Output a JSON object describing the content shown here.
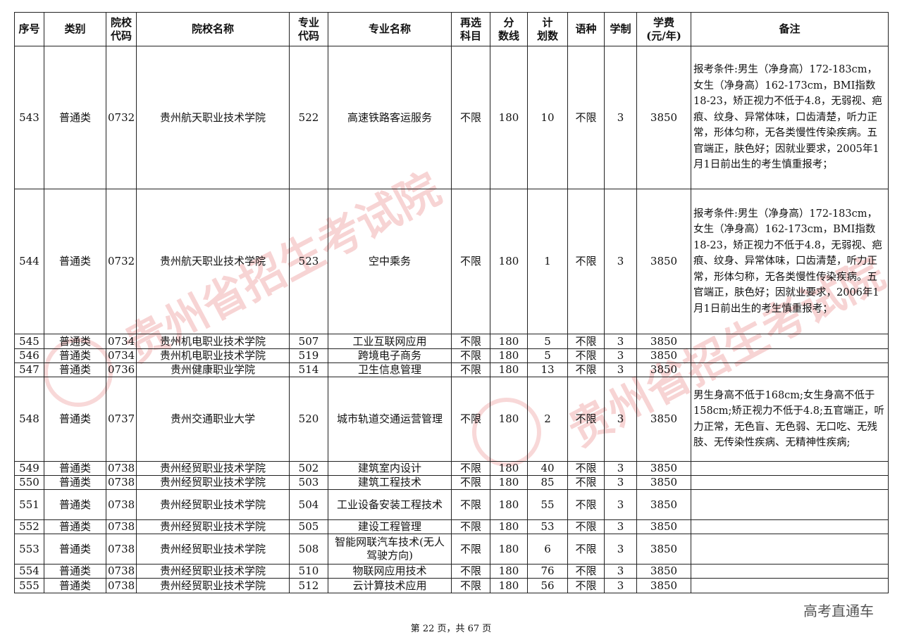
{
  "headers": [
    "序号",
    "类别",
    "院校\n代码",
    "院校名称",
    "专业\n代码",
    "专业名称",
    "再选\n科目",
    "分\n数线",
    "计\n划数",
    "语种",
    "学制",
    "学费\n(元/年)",
    "备注"
  ],
  "rows": [
    [
      "543",
      "普通类",
      "0732",
      "贵州航天职业技术学院",
      "522",
      "高速铁路客运服务",
      "不限",
      "180",
      "10",
      "不限",
      "3",
      "3850",
      "报考条件:男生（净身高）172-183cm，女生（净身高）162-173cm，BMI指数18-23，矫正视力不低于4.8，无弱视、疤痕、纹身、异常体味，口齿清楚，听力正常，形体匀称，无各类慢性传染疾病。五官端正，肤色好；因就业要求，2005年1月1日前出生的考生慎重报考；"
    ],
    [
      "544",
      "普通类",
      "0732",
      "贵州航天职业技术学院",
      "523",
      "空中乘务",
      "不限",
      "180",
      "1",
      "不限",
      "3",
      "3850",
      "报考条件:男生（净身高）172-183cm，女生（净身高）162-173cm，BMI指数18-23，矫正视力不低于4.8，无弱视、疤痕、纹身、异常体味，口齿清楚，听力正常，形体匀称，无各类慢性传染疾病。五官端正，肤色好；因就业要求，2006年1月1日前出生的考生慎重报考；"
    ],
    [
      "545",
      "普通类",
      "0734",
      "贵州机电职业技术学院",
      "507",
      "工业互联网应用",
      "不限",
      "180",
      "5",
      "不限",
      "3",
      "3850",
      ""
    ],
    [
      "546",
      "普通类",
      "0734",
      "贵州机电职业技术学院",
      "519",
      "跨境电子商务",
      "不限",
      "180",
      "5",
      "不限",
      "3",
      "3850",
      ""
    ],
    [
      "547",
      "普通类",
      "0736",
      "贵州健康职业学院",
      "514",
      "卫生信息管理",
      "不限",
      "180",
      "13",
      "不限",
      "3",
      "3850",
      ""
    ],
    [
      "548",
      "普通类",
      "0737",
      "贵州交通职业大学",
      "520",
      "城市轨道交通运营管理",
      "不限",
      "180",
      "2",
      "不限",
      "3",
      "3850",
      "男生身高不低于168cm;女生身高不低于158cm;矫正视力不低于4.8;五官端正，听力正常，无色盲、无色弱、无口吃、无残肢、无传染性疾病、无精神性疾病;"
    ],
    [
      "549",
      "普通类",
      "0738",
      "贵州经贸职业技术学院",
      "502",
      "建筑室内设计",
      "不限",
      "180",
      "40",
      "不限",
      "3",
      "3850",
      ""
    ],
    [
      "550",
      "普通类",
      "0738",
      "贵州经贸职业技术学院",
      "503",
      "建筑工程技术",
      "不限",
      "180",
      "85",
      "不限",
      "3",
      "3850",
      ""
    ],
    [
      "551",
      "普通类",
      "0738",
      "贵州经贸职业技术学院",
      "504",
      "工业设备安装工程技术",
      "不限",
      "180",
      "55",
      "不限",
      "3",
      "3850",
      ""
    ],
    [
      "552",
      "普通类",
      "0738",
      "贵州经贸职业技术学院",
      "505",
      "建设工程管理",
      "不限",
      "180",
      "53",
      "不限",
      "3",
      "3850",
      ""
    ],
    [
      "553",
      "普通类",
      "0738",
      "贵州经贸职业技术学院",
      "508",
      "智能网联汽车技术(无人驾驶方向)",
      "不限",
      "180",
      "6",
      "不限",
      "3",
      "3850",
      ""
    ],
    [
      "554",
      "普通类",
      "0738",
      "贵州经贸职业技术学院",
      "510",
      "物联网应用技术",
      "不限",
      "180",
      "76",
      "不限",
      "3",
      "3850",
      ""
    ],
    [
      "555",
      "普通类",
      "0738",
      "贵州经贸职业技术学院",
      "512",
      "云计算技术应用",
      "不限",
      "180",
      "56",
      "不限",
      "3",
      "3850",
      ""
    ]
  ],
  "footer": "第 22 页，共 67 页",
  "watermark": "贵州省招生考试院",
  "brand": "高考直通车"
}
